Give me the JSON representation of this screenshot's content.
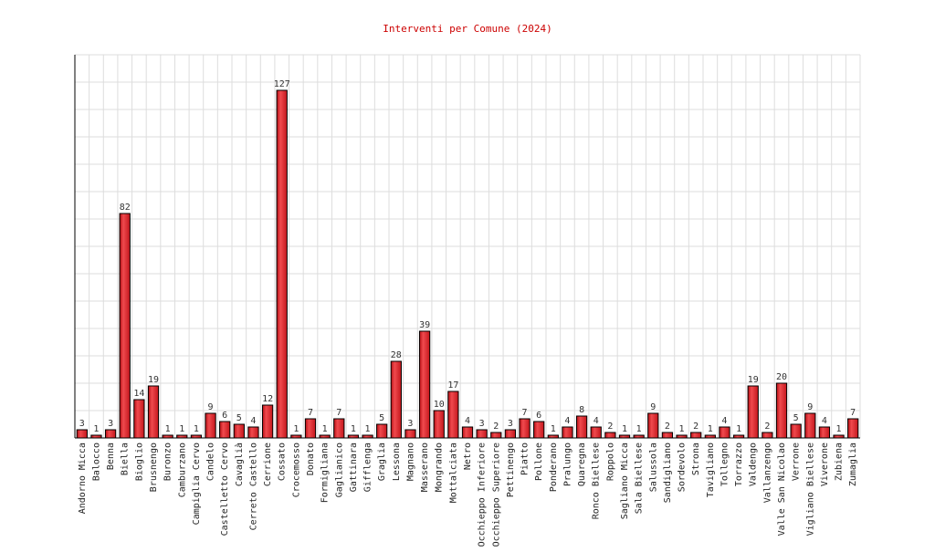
{
  "chart_data": {
    "type": "bar",
    "title": "Interventi per Comune (2024)",
    "xlabel": "",
    "ylabel": "",
    "ylim": [
      0,
      140
    ],
    "grid": true,
    "bar_color": "#e8262b",
    "title_color": "#cc0000",
    "categories": [
      "Andorno Micca",
      "Balocco",
      "Benna",
      "Biella",
      "Bioglio",
      "Brusnengo",
      "Buronzo",
      "Camburzano",
      "Campiglia Cervo",
      "Candelo",
      "Castelletto Cervo",
      "Cavaglià",
      "Cerreto Castello",
      "Cerrione",
      "Cossato",
      "Crocemosso",
      "Donato",
      "Formigliana",
      "Gaglianico",
      "Gattinara",
      "Gifflenga",
      "Graglia",
      "Lessona",
      "Magnano",
      "Masserano",
      "Mongrando",
      "Mottalciata",
      "Netro",
      "Occhieppo Inferiore",
      "Occhieppo Superiore",
      "Pettinengo",
      "Piatto",
      "Pollone",
      "Ponderano",
      "Pralungo",
      "Quaregna",
      "Ronco Biellese",
      "Roppolo",
      "Sagliano Micca",
      "Sala Biellese",
      "Salussola",
      "Sandigliano",
      "Sordevolo",
      "Strona",
      "Tavigliano",
      "Tollegno",
      "Torrazzo",
      "Valdengo",
      "Vallanzengo",
      "Valle San Nicolao",
      "Verrone",
      "Vigliano Biellese",
      "Viverone",
      "Zubiena",
      "Zumaglia"
    ],
    "values": [
      3,
      1,
      3,
      82,
      14,
      19,
      1,
      1,
      1,
      9,
      6,
      5,
      4,
      12,
      127,
      1,
      7,
      1,
      7,
      1,
      1,
      5,
      28,
      3,
      39,
      10,
      17,
      4,
      3,
      2,
      3,
      7,
      6,
      1,
      4,
      8,
      4,
      2,
      1,
      1,
      9,
      2,
      1,
      2,
      1,
      4,
      1,
      19,
      2,
      20,
      5,
      9,
      4,
      1,
      7
    ]
  }
}
